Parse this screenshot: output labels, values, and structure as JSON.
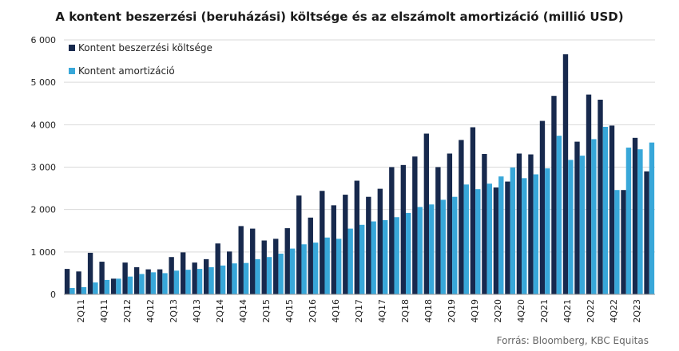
{
  "chart_data": {
    "type": "bar",
    "title": "A kontent beszerzési (beruházási) költsége és az elszámolt amortizáció (millió USD)",
    "source": "Forrás: Bloomberg,  KBC Equitas",
    "ylim": [
      0,
      6000
    ],
    "yticks": [
      0,
      1000,
      2000,
      3000,
      4000,
      5000,
      6000
    ],
    "ytick_labels": [
      "0",
      "1 000",
      "2 000",
      "3 000",
      "4 000",
      "5 000",
      "6 000"
    ],
    "grid": true,
    "legend_position": "top-left",
    "categories": [
      "1Q11",
      "2Q11",
      "3Q11",
      "4Q11",
      "1Q12",
      "2Q12",
      "3Q12",
      "4Q12",
      "1Q13",
      "2Q13",
      "3Q13",
      "4Q13",
      "1Q14",
      "2Q14",
      "3Q14",
      "4Q14",
      "1Q15",
      "2Q15",
      "3Q15",
      "4Q15",
      "1Q16",
      "2Q16",
      "3Q16",
      "4Q16",
      "1Q17",
      "2Q17",
      "3Q17",
      "4Q17",
      "1Q18",
      "2Q18",
      "3Q18",
      "4Q18",
      "1Q19",
      "2Q19",
      "3Q19",
      "4Q19",
      "1Q20",
      "2Q20",
      "3Q20",
      "4Q20",
      "1Q21",
      "2Q21",
      "3Q21",
      "4Q21",
      "1Q22",
      "2Q22",
      "3Q22",
      "4Q22",
      "1Q23",
      "2Q23",
      "3Q23"
    ],
    "xtick_labels": [
      "2Q11",
      "4Q11",
      "2Q12",
      "4Q12",
      "2Q13",
      "4Q13",
      "2Q14",
      "4Q14",
      "2Q15",
      "4Q15",
      "2Q16",
      "4Q16",
      "2Q17",
      "4Q17",
      "2Q18",
      "4Q18",
      "2Q19",
      "4Q19",
      "2Q20",
      "4Q20",
      "2Q21",
      "4Q21",
      "2Q22",
      "4Q22",
      "2Q23"
    ],
    "series": [
      {
        "name": "Kontent beszerzési költsége",
        "color": "#17294d",
        "values": [
          600,
          540,
          980,
          770,
          370,
          750,
          640,
          590,
          590,
          880,
          990,
          750,
          830,
          1200,
          1010,
          1610,
          1550,
          1270,
          1310,
          1560,
          2330,
          1810,
          2440,
          2100,
          2350,
          2680,
          2300,
          2490,
          3000,
          3050,
          3250,
          3790,
          3000,
          3320,
          3640,
          3940,
          3310,
          2520,
          2660,
          3320,
          3300,
          4090,
          4680,
          5660,
          3600,
          4710,
          4590,
          3980,
          2460,
          3690,
          2900
        ]
      },
      {
        "name": "Kontent amortizáció",
        "color": "#38a7d9",
        "values": [
          150,
          170,
          280,
          340,
          370,
          420,
          480,
          520,
          500,
          560,
          580,
          600,
          640,
          680,
          730,
          740,
          830,
          880,
          960,
          1080,
          1180,
          1220,
          1340,
          1310,
          1550,
          1640,
          1720,
          1750,
          1820,
          1920,
          2060,
          2120,
          2230,
          2300,
          2590,
          2480,
          2610,
          2780,
          2990,
          2740,
          2830,
          2970,
          3740,
          3170,
          3270,
          3660,
          3950,
          2460,
          3460,
          3420,
          3580
        ]
      }
    ]
  }
}
